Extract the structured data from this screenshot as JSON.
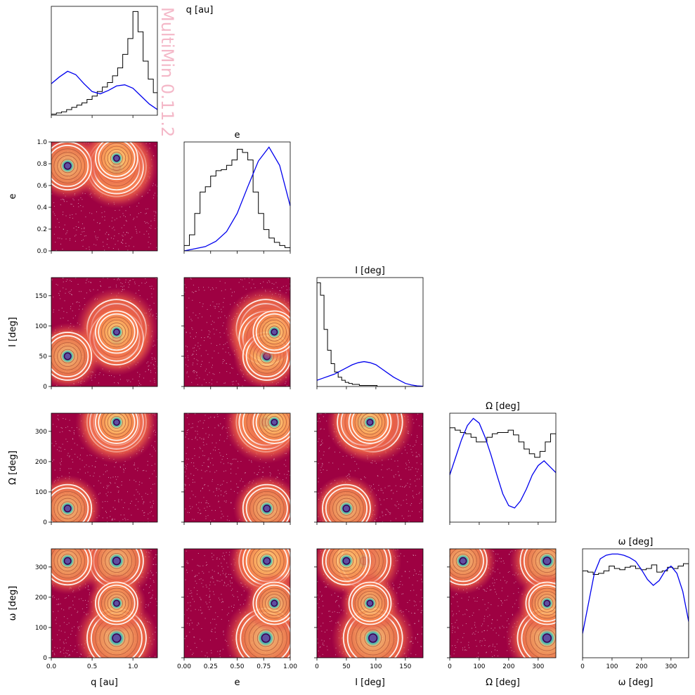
{
  "watermark": "MultiMin 0.11.2",
  "chart_data": {
    "type": "corner",
    "variables": [
      {
        "key": "q",
        "label": "q [au]",
        "range": [
          0,
          1.3
        ],
        "ticks": [
          0.0,
          0.5,
          1.0
        ],
        "tick_labels": [
          "0.0",
          "0.5",
          "1.0"
        ]
      },
      {
        "key": "e",
        "label": "e",
        "range": [
          0,
          1.0
        ],
        "ticks": [
          0.0,
          0.25,
          0.5,
          0.75,
          1.0
        ],
        "tick_labels": [
          "0.00",
          "0.25",
          "0.50",
          "0.75",
          "1.00"
        ]
      },
      {
        "key": "I",
        "label": "I [deg]",
        "range": [
          0,
          180
        ],
        "ticks": [
          0,
          50,
          100,
          150
        ],
        "tick_labels": [
          "0",
          "50",
          "100",
          "150"
        ]
      },
      {
        "key": "Omega",
        "label": "Ω [deg]",
        "range": [
          0,
          360
        ],
        "ticks": [
          0,
          100,
          200,
          300
        ],
        "tick_labels": [
          "0",
          "100",
          "200",
          "300"
        ]
      },
      {
        "key": "omega",
        "label": "ω [deg]",
        "range": [
          0,
          360
        ],
        "ticks": [
          0,
          100,
          200,
          300
        ],
        "tick_labels": [
          "0",
          "100",
          "200",
          "300"
        ]
      }
    ],
    "e_yticks": [
      0.0,
      0.2,
      0.4,
      0.6,
      0.8,
      1.0
    ],
    "e_ytick_labels": [
      "0.0",
      "0.2",
      "0.4",
      "0.6",
      "0.8",
      "1.0"
    ],
    "histograms": [
      {
        "var": "q",
        "bins": [
          0.0,
          0.0625,
          0.125,
          0.1875,
          0.25,
          0.3125,
          0.375,
          0.4375,
          0.5,
          0.5625,
          0.625,
          0.6875,
          0.75,
          0.8125,
          0.875,
          0.9375,
          1.0,
          1.0625,
          1.125,
          1.1875,
          1.25,
          1.3
        ],
        "counts": [
          1,
          2,
          3,
          5,
          7,
          9,
          11,
          14,
          17,
          21,
          25,
          29,
          35,
          42,
          54,
          68,
          92,
          74,
          48,
          32,
          20
        ]
      },
      {
        "var": "e",
        "bins": [
          0.0,
          0.05,
          0.1,
          0.15,
          0.2,
          0.25,
          0.3,
          0.35,
          0.4,
          0.45,
          0.5,
          0.55,
          0.6,
          0.65,
          0.7,
          0.75,
          0.8,
          0.85,
          0.9,
          0.95,
          1.0
        ],
        "counts": [
          5,
          15,
          35,
          55,
          60,
          70,
          75,
          76,
          80,
          85,
          95,
          92,
          85,
          55,
          35,
          20,
          12,
          8,
          5,
          3
        ]
      },
      {
        "var": "I",
        "bins": [
          0,
          6,
          12,
          18,
          24,
          30,
          36,
          42,
          48,
          54,
          60,
          66,
          72,
          78,
          84,
          90,
          96,
          102,
          108,
          114,
          120,
          126,
          132,
          138,
          144,
          150,
          156,
          162,
          168,
          174,
          180
        ],
        "counts": [
          100,
          88,
          55,
          35,
          22,
          14,
          9,
          6,
          4,
          3,
          2,
          2,
          1,
          1,
          1,
          1,
          1,
          0,
          0,
          0,
          0,
          0,
          0,
          0,
          0,
          0,
          0,
          0,
          0,
          0
        ]
      },
      {
        "var": "Omega",
        "bins": [
          0,
          18,
          36,
          54,
          72,
          90,
          108,
          126,
          144,
          162,
          180,
          198,
          216,
          234,
          252,
          270,
          288,
          306,
          324,
          342,
          360
        ],
        "counts": [
          80,
          78,
          76,
          75,
          72,
          68,
          68,
          72,
          75,
          76,
          76,
          78,
          74,
          68,
          62,
          58,
          55,
          60,
          68,
          75
        ]
      },
      {
        "var": "omega",
        "bins": [
          0,
          18,
          36,
          54,
          72,
          90,
          108,
          126,
          144,
          162,
          180,
          198,
          216,
          234,
          252,
          270,
          288,
          306,
          324,
          342,
          360
        ],
        "counts": [
          72,
          71,
          69,
          70,
          72,
          76,
          74,
          73,
          75,
          76,
          74,
          73,
          74,
          77,
          71,
          72,
          75,
          74,
          76,
          78
        ]
      }
    ],
    "marginal_fits": {
      "q": {
        "x": [
          0,
          0.1,
          0.2,
          0.3,
          0.4,
          0.5,
          0.6,
          0.7,
          0.8,
          0.9,
          1.0,
          1.1,
          1.2,
          1.3
        ],
        "y": [
          28,
          34,
          39,
          36,
          28,
          21,
          19,
          22,
          26,
          27,
          24,
          17,
          10,
          5
        ]
      },
      "e": {
        "x": [
          0,
          0.1,
          0.2,
          0.3,
          0.4,
          0.5,
          0.6,
          0.7,
          0.8,
          0.9,
          1.0
        ],
        "y": [
          0,
          2,
          4,
          9,
          18,
          35,
          60,
          84,
          97,
          80,
          42
        ]
      },
      "I": {
        "x": [
          0,
          10,
          20,
          30,
          40,
          50,
          60,
          70,
          80,
          90,
          100,
          110,
          120,
          130,
          140,
          150,
          160,
          170,
          180
        ],
        "y": [
          6,
          8,
          10,
          12,
          15,
          18,
          21,
          23,
          24,
          23,
          21,
          17,
          13,
          9,
          6,
          3,
          1.5,
          0.6,
          0.2
        ]
      },
      "Omega": {
        "x": [
          0,
          20,
          40,
          60,
          80,
          100,
          120,
          140,
          160,
          180,
          200,
          220,
          240,
          260,
          280,
          300,
          320,
          340,
          360
        ],
        "y": [
          40,
          55,
          70,
          82,
          88,
          84,
          72,
          57,
          40,
          24,
          14,
          12,
          18,
          28,
          40,
          48,
          52,
          47,
          42
        ]
      },
      "omega": {
        "x": [
          0,
          20,
          40,
          60,
          80,
          100,
          120,
          140,
          160,
          180,
          200,
          220,
          240,
          260,
          280,
          300,
          320,
          340,
          360
        ],
        "y": [
          20,
          45,
          70,
          82,
          85,
          86,
          86,
          85,
          83,
          80,
          73,
          65,
          60,
          64,
          72,
          76,
          70,
          55,
          30
        ]
      }
    },
    "component_peaks": [
      {
        "q": 0.8,
        "e": 0.77,
        "I": 95,
        "Omega": 330,
        "omega": 65
      },
      {
        "q": 0.8,
        "e": 0.77,
        "I": 80,
        "Omega": 330,
        "omega": 320
      },
      {
        "q": 0.2,
        "e": 0.78,
        "I": 50,
        "Omega": 45,
        "omega": 320
      },
      {
        "q": 0.8,
        "e": 0.85,
        "I": 90,
        "Omega": 330,
        "omega": 180
      }
    ]
  }
}
